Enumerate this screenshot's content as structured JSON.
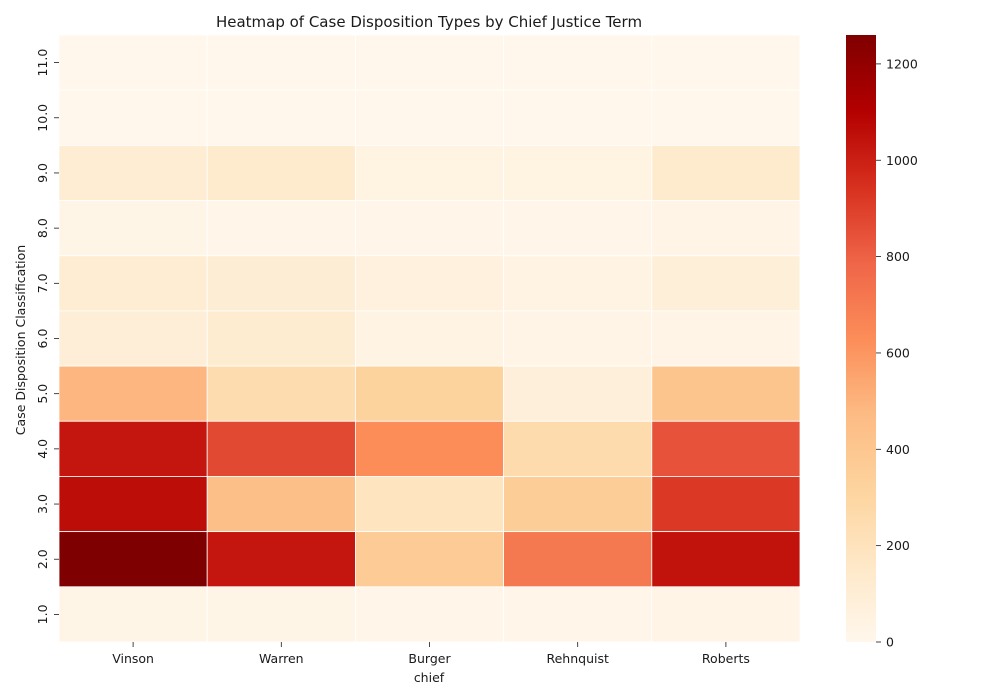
{
  "chart_data": {
    "type": "heatmap",
    "title": "Heatmap of Case Disposition Types by Chief Justice Term",
    "xlabel": "chief",
    "ylabel": "Case Disposition Classification",
    "x_categories": [
      "Vinson",
      "Warren",
      "Burger",
      "Rehnquist",
      "Roberts"
    ],
    "y_categories": [
      "11.0",
      "10.0",
      "9.0",
      "8.0",
      "7.0",
      "6.0",
      "5.0",
      "4.0",
      "3.0",
      "2.0",
      "1.0"
    ],
    "values": [
      [
        5,
        5,
        5,
        5,
        5
      ],
      [
        5,
        5,
        5,
        5,
        5
      ],
      [
        110,
        140,
        45,
        45,
        130
      ],
      [
        20,
        15,
        15,
        15,
        30
      ],
      [
        110,
        100,
        60,
        35,
        85
      ],
      [
        90,
        120,
        35,
        30,
        30
      ],
      [
        490,
        250,
        320,
        80,
        410
      ],
      [
        1030,
        870,
        630,
        260,
        840
      ],
      [
        1060,
        450,
        190,
        360,
        920
      ],
      [
        1260,
        1030,
        370,
        710,
        1040
      ],
      [
        25,
        20,
        15,
        15,
        30
      ]
    ],
    "colorbar": {
      "vmin": 0,
      "vmax": 1260,
      "ticks": [
        "0",
        "200",
        "400",
        "600",
        "800",
        "1000",
        "1200"
      ],
      "colormap": "OrRd",
      "stops": [
        "#fff7ec",
        "#fee8c8",
        "#fdd49e",
        "#fdbb84",
        "#fc8d59",
        "#ef6548",
        "#d7301f",
        "#b30000",
        "#7f0000"
      ]
    },
    "grid": false
  }
}
